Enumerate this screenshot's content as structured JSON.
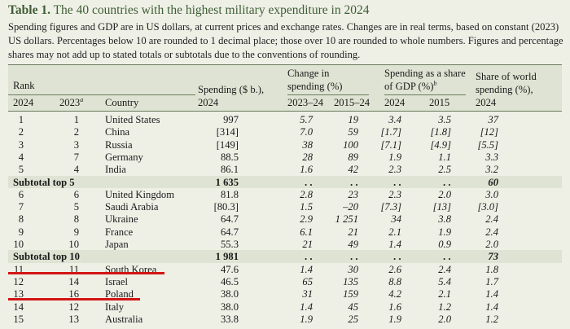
{
  "table": {
    "title_label": "Table 1.",
    "title_text": "The 40 countries with the highest military expenditure in 2024",
    "note": "Spending figures and GDP are in US dollars, at current prices and exchange rates. Changes are in real terms, based on constant (2023) US dollars. Percentages below 10 are rounded to 1 decimal place; those over 10 are rounded to whole numbers. Figures and percentage shares may not add up to stated totals or subtotals due to the conventions of rounding.",
    "headers": {
      "rank": "Rank",
      "rank_2024": "2024",
      "rank_2023": "2023",
      "rank_2023_sup": "a",
      "country": "Country",
      "spending_line1": "Spending ($ b.),",
      "spending_line2": "2024",
      "change_line1": "Change in",
      "change_line2": "spending (%)",
      "change_2324": "2023–24",
      "change_1524": "2015–24",
      "gdp_line1": "Spending as a share",
      "gdp_line2": "of GDP (%)",
      "gdp_sup": "b",
      "gdp_2024": "2024",
      "gdp_2015": "2015",
      "world_line1": "Share of world",
      "world_line2": "spending (%),",
      "world_line3": "2024"
    },
    "rows": [
      {
        "kind": "row",
        "r24": "1",
        "r23": "1",
        "country": "United States",
        "spend": "997",
        "c1": "5.7",
        "c2": "19",
        "g24": "3.4",
        "g15": "3.5",
        "share": "37"
      },
      {
        "kind": "row",
        "r24": "2",
        "r23": "2",
        "country": "China",
        "spend": "[314]",
        "c1": "7.0",
        "c2": "59",
        "g24": "[1.7]",
        "g15": "[1.8]",
        "share": "[12]"
      },
      {
        "kind": "row",
        "r24": "3",
        "r23": "3",
        "country": "Russia",
        "spend": "[149]",
        "c1": "38",
        "c2": "100",
        "g24": "[7.1]",
        "g15": "[4.9]",
        "share": "[5.5]"
      },
      {
        "kind": "row",
        "r24": "4",
        "r23": "7",
        "country": "Germany",
        "spend": "88.5",
        "c1": "28",
        "c2": "89",
        "g24": "1.9",
        "g15": "1.1",
        "share": "3.3"
      },
      {
        "kind": "row",
        "r24": "5",
        "r23": "4",
        "country": "India",
        "spend": "86.1",
        "c1": "1.6",
        "c2": "42",
        "g24": "2.3",
        "g15": "2.5",
        "share": "3.2"
      },
      {
        "kind": "sub",
        "label": "Subtotal top 5",
        "spend": "1 635",
        "c1": ". .",
        "c2": ". .",
        "g24": ". .",
        "g15": ". .",
        "share": "60"
      },
      {
        "kind": "row",
        "r24": "6",
        "r23": "6",
        "country": "United Kingdom",
        "spend": "81.8",
        "c1": "2.8",
        "c2": "23",
        "g24": "2.3",
        "g15": "2.0",
        "share": "3.0"
      },
      {
        "kind": "row",
        "r24": "7",
        "r23": "5",
        "country": "Saudi Arabia",
        "spend": "[80.3]",
        "c1": "1.5",
        "c2": "–20",
        "g24": "[7.3]",
        "g15": "[13]",
        "share": "[3.0]"
      },
      {
        "kind": "row",
        "r24": "8",
        "r23": "8",
        "country": "Ukraine",
        "spend": "64.7",
        "c1": "2.9",
        "c2": "1 251",
        "g24": "34",
        "g15": "3.8",
        "share": "2.4"
      },
      {
        "kind": "row",
        "r24": "9",
        "r23": "9",
        "country": "France",
        "spend": "64.7",
        "c1": "6.1",
        "c2": "21",
        "g24": "2.1",
        "g15": "1.9",
        "share": "2.4"
      },
      {
        "kind": "row",
        "r24": "10",
        "r23": "10",
        "country": "Japan",
        "spend": "55.3",
        "c1": "21",
        "c2": "49",
        "g24": "1.4",
        "g15": "0.9",
        "share": "2.0"
      },
      {
        "kind": "sub",
        "label": "Subtotal top 10",
        "spend": "1 981",
        "c1": ". .",
        "c2": ". .",
        "g24": ". .",
        "g15": ". .",
        "share": "73"
      },
      {
        "kind": "row",
        "r24": "11",
        "r23": "11",
        "country": "South Korea",
        "spend": "47.6",
        "c1": "1.4",
        "c2": "30",
        "g24": "2.6",
        "g15": "2.4",
        "share": "1.8"
      },
      {
        "kind": "row",
        "r24": "12",
        "r23": "14",
        "country": "Israel",
        "spend": "46.5",
        "c1": "65",
        "c2": "135",
        "g24": "8.8",
        "g15": "5.4",
        "share": "1.7"
      },
      {
        "kind": "row",
        "r24": "13",
        "r23": "16",
        "country": "Poland",
        "spend": "38.0",
        "c1": "31",
        "c2": "159",
        "g24": "4.2",
        "g15": "2.1",
        "share": "1.4"
      },
      {
        "kind": "row",
        "r24": "14",
        "r23": "12",
        "country": "Italy",
        "spend": "38.0",
        "c1": "1.4",
        "c2": "45",
        "g24": "1.6",
        "g15": "1.2",
        "share": "1.4"
      },
      {
        "kind": "row",
        "r24": "15",
        "r23": "13",
        "country": "Australia",
        "spend": "33.8",
        "c1": "1.9",
        "c2": "25",
        "g24": "1.9",
        "g15": "2.0",
        "share": "1.2"
      }
    ]
  },
  "colors": {
    "background": "#eef0e6",
    "title": "#3f5d35",
    "shade": "#dfe3d3",
    "highlight": "#d31515"
  }
}
